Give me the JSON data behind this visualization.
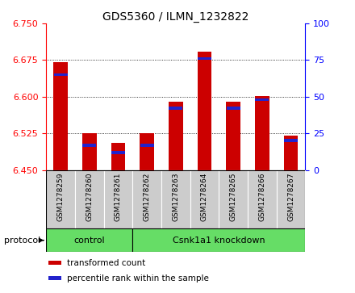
{
  "title": "GDS5360 / ILMN_1232822",
  "samples": [
    "GSM1278259",
    "GSM1278260",
    "GSM1278261",
    "GSM1278262",
    "GSM1278263",
    "GSM1278264",
    "GSM1278265",
    "GSM1278266",
    "GSM1278267"
  ],
  "transformed_counts": [
    6.67,
    6.525,
    6.505,
    6.525,
    6.59,
    6.693,
    6.59,
    6.602,
    6.52
  ],
  "percentile_ranks": [
    65,
    17,
    12,
    17,
    42,
    76,
    42,
    48,
    20
  ],
  "ylim_left": [
    6.45,
    6.75
  ],
  "ylim_right": [
    0,
    100
  ],
  "yticks_left": [
    6.45,
    6.525,
    6.6,
    6.675,
    6.75
  ],
  "yticks_right": [
    0,
    25,
    50,
    75,
    100
  ],
  "base_value": 6.45,
  "bar_color_red": "#cc0000",
  "bar_color_blue": "#2222cc",
  "protocol_groups": [
    {
      "label": "control",
      "start": 0,
      "end": 3
    },
    {
      "label": "Csnk1a1 knockdown",
      "start": 3,
      "end": 9
    }
  ],
  "protocol_label": "protocol",
  "legend_items": [
    {
      "color": "#cc0000",
      "label": "transformed count"
    },
    {
      "color": "#2222cc",
      "label": "percentile rank within the sample"
    }
  ],
  "green_color": "#66dd66",
  "gray_color": "#cccccc",
  "bar_width": 0.5
}
